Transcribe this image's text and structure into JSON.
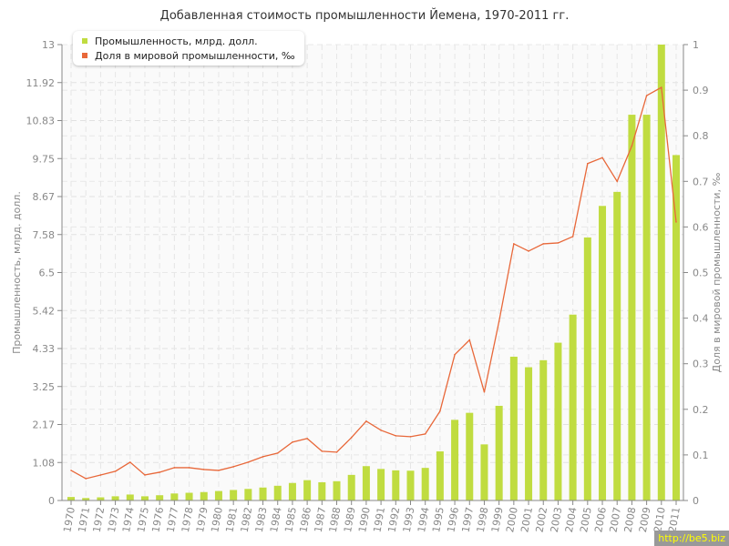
{
  "chart_data": {
    "type": "bar+line",
    "title": "Добавленная стоимость промышленности Йемена, 1970-2011 гг.",
    "ylabel": "Промышленность, млрд. долл.",
    "y2label": "Доля в мировой промышленности, ‰",
    "ylim": [
      0,
      13
    ],
    "y2lim": [
      0,
      1
    ],
    "yticks": [
      "0",
      "1.08",
      "2.17",
      "3.25",
      "4.33",
      "5.42",
      "6.5",
      "7.58",
      "8.67",
      "9.75",
      "10.83",
      "11.92",
      "13"
    ],
    "y2ticks": [
      "0",
      "0.1",
      "0.2",
      "0.3",
      "0.4",
      "0.5",
      "0.6",
      "0.7",
      "0.8",
      "0.9",
      "1"
    ],
    "grid": true,
    "legend_position": "top-left",
    "categories": [
      "1970",
      "1971",
      "1972",
      "1973",
      "1974",
      "1975",
      "1976",
      "1977",
      "1978",
      "1979",
      "1980",
      "1981",
      "1982",
      "1983",
      "1984",
      "1985",
      "1986",
      "1987",
      "1988",
      "1989",
      "1990",
      "1991",
      "1992",
      "1993",
      "1994",
      "1995",
      "1996",
      "1997",
      "1998",
      "1999",
      "2000",
      "2001",
      "2002",
      "2003",
      "2004",
      "2005",
      "2006",
      "2007",
      "2008",
      "2009",
      "2010",
      "2011"
    ],
    "series": [
      {
        "name": "Промышленность, млрд. долл.",
        "type": "bar",
        "axis": "left",
        "color": "#c0dc40",
        "values": [
          0.1,
          0.07,
          0.09,
          0.12,
          0.17,
          0.12,
          0.15,
          0.2,
          0.22,
          0.24,
          0.27,
          0.3,
          0.33,
          0.37,
          0.42,
          0.5,
          0.58,
          0.52,
          0.55,
          0.73,
          0.98,
          0.9,
          0.86,
          0.85,
          0.93,
          1.4,
          2.3,
          2.5,
          1.6,
          2.7,
          4.1,
          3.8,
          4.0,
          4.5,
          5.3,
          7.5,
          8.4,
          8.8,
          11.0,
          11.0,
          13.0,
          9.85
        ]
      },
      {
        "name": "Доля в мировой промышленности, ‰",
        "type": "line",
        "axis": "right",
        "color": "#e8683a",
        "values": [
          0.066,
          0.048,
          0.056,
          0.064,
          0.084,
          0.056,
          0.062,
          0.072,
          0.072,
          0.068,
          0.066,
          0.074,
          0.084,
          0.096,
          0.104,
          0.128,
          0.136,
          0.108,
          0.106,
          0.138,
          0.174,
          0.154,
          0.142,
          0.14,
          0.146,
          0.196,
          0.32,
          0.352,
          0.238,
          0.393,
          0.563,
          0.547,
          0.563,
          0.565,
          0.579,
          0.739,
          0.752,
          0.7,
          0.778,
          0.888,
          0.906,
          0.611
        ]
      }
    ]
  },
  "watermark": "http://be5.biz"
}
